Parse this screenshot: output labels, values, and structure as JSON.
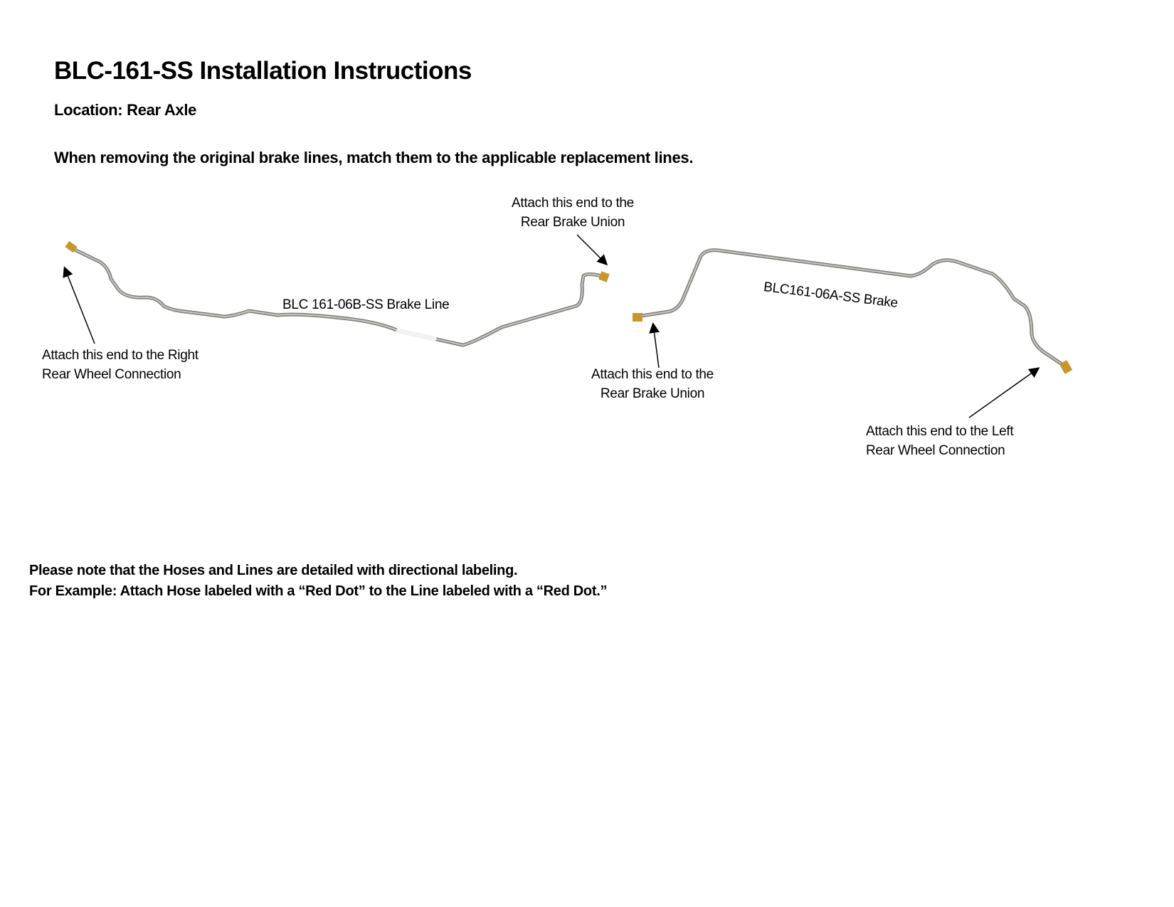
{
  "document": {
    "title": "BLC-161-SS Installation Instructions",
    "location": "Location: Rear Axle",
    "instruction": "When removing the original brake lines, match them to the applicable replacement lines."
  },
  "diagram": {
    "line_b": {
      "label": "BLC 161-06B-SS Brake Line",
      "left_end_callout": [
        "Attach this end to the Right",
        "Rear Wheel Connection"
      ],
      "right_end_callout": [
        "Attach this end to the",
        "Rear Brake Union"
      ]
    },
    "line_a": {
      "label": "BLC161-06A-SS Brake",
      "left_end_callout": [
        "Attach this end to the",
        "Rear Brake Union"
      ],
      "right_end_callout": [
        "Attach this end to the Left",
        "Rear Wheel Connection"
      ]
    },
    "colors": {
      "pipe": "#9a9a94",
      "fitting": "#c8962e"
    }
  },
  "notes": [
    "Please note that the Hoses and Lines are detailed with directional labeling.",
    "For Example: Attach Hose labeled with a “Red Dot” to the Line labeled with a “Red Dot.”"
  ]
}
